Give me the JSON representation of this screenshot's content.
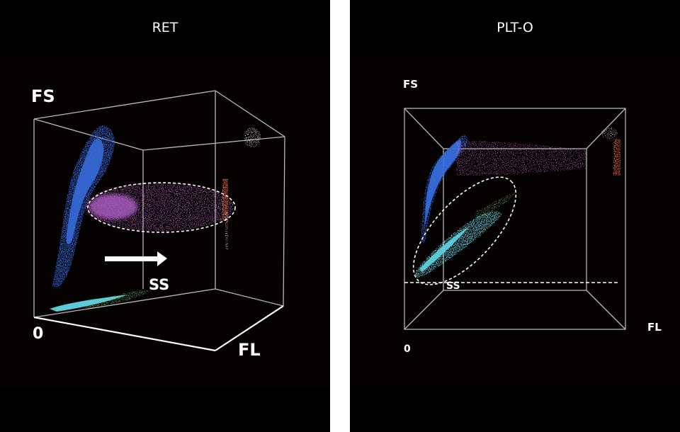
{
  "panels": [
    {
      "title": "RET",
      "axes": {
        "vertical": "FS",
        "depth": "SS",
        "horizontal": "FL",
        "origin": "0"
      }
    },
    {
      "title": "PLT-O",
      "axes": {
        "vertical": "FS",
        "depth": "SS",
        "horizontal": "FL",
        "origin": "0"
      }
    }
  ],
  "colors": {
    "rbc_blue": "#2f63d6",
    "retic_magenta": "#c070d8",
    "plt_cyan": "#5fd6e4",
    "green": "#7fd08a",
    "orange": "#d0603a",
    "white": "#e8e8e8",
    "cube_lines": "#b9b9b9"
  }
}
